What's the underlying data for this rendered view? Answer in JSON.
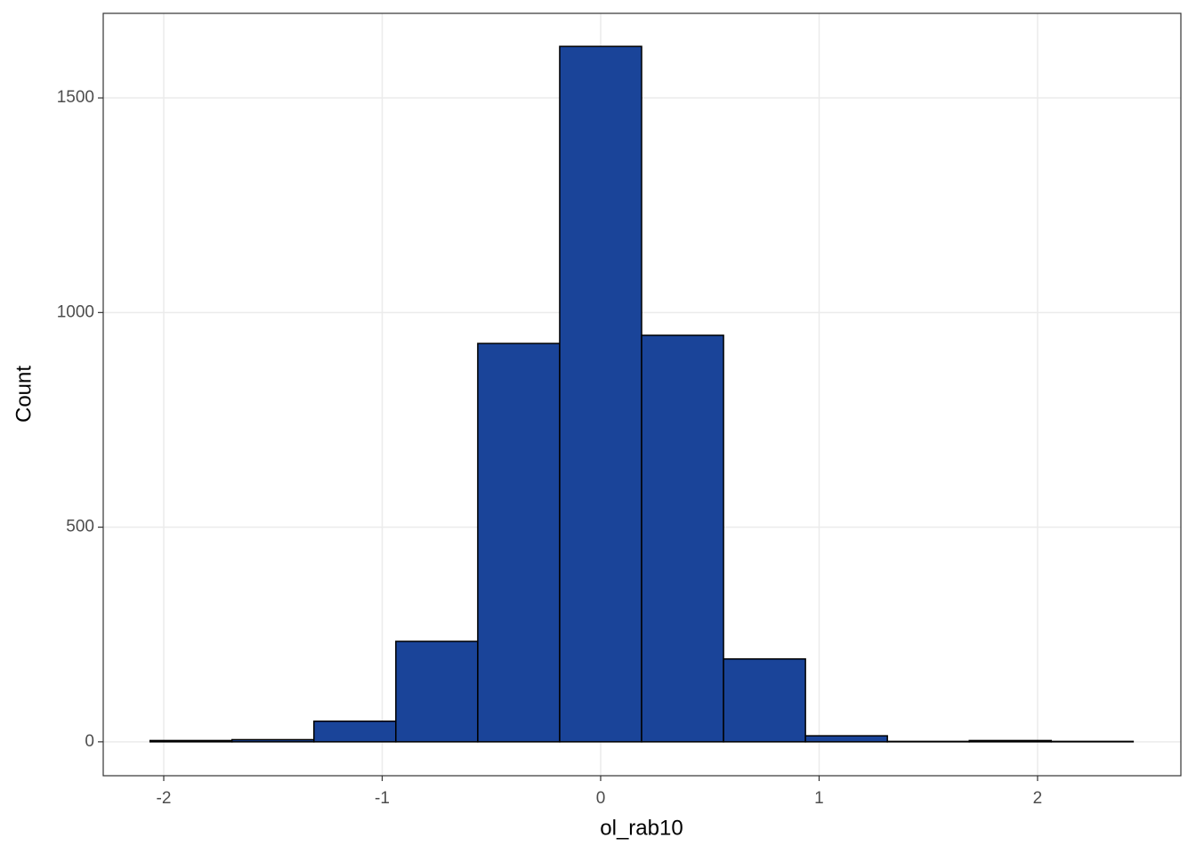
{
  "chart_data": {
    "type": "histogram",
    "x_label": "ol_rab10",
    "y_label": "Count",
    "bins": [
      -2.0625,
      -1.6875,
      -1.3125,
      -0.9375,
      -0.5625,
      -0.1875,
      0.1875,
      0.5625,
      0.9375,
      1.3125,
      1.6875,
      2.0625,
      2.4375
    ],
    "values": [
      3,
      5,
      48,
      234,
      928,
      1620,
      947,
      193,
      14,
      1,
      3,
      1
    ],
    "color": "#1a4499",
    "edge_color": "#000000",
    "xlim": [
      -2.277,
      2.656
    ],
    "ylim": [
      -79,
      1697
    ],
    "xticks": [
      -2,
      -1,
      0,
      1,
      2
    ],
    "yticks": [
      0,
      500,
      1000,
      1500
    ],
    "grid": true
  }
}
